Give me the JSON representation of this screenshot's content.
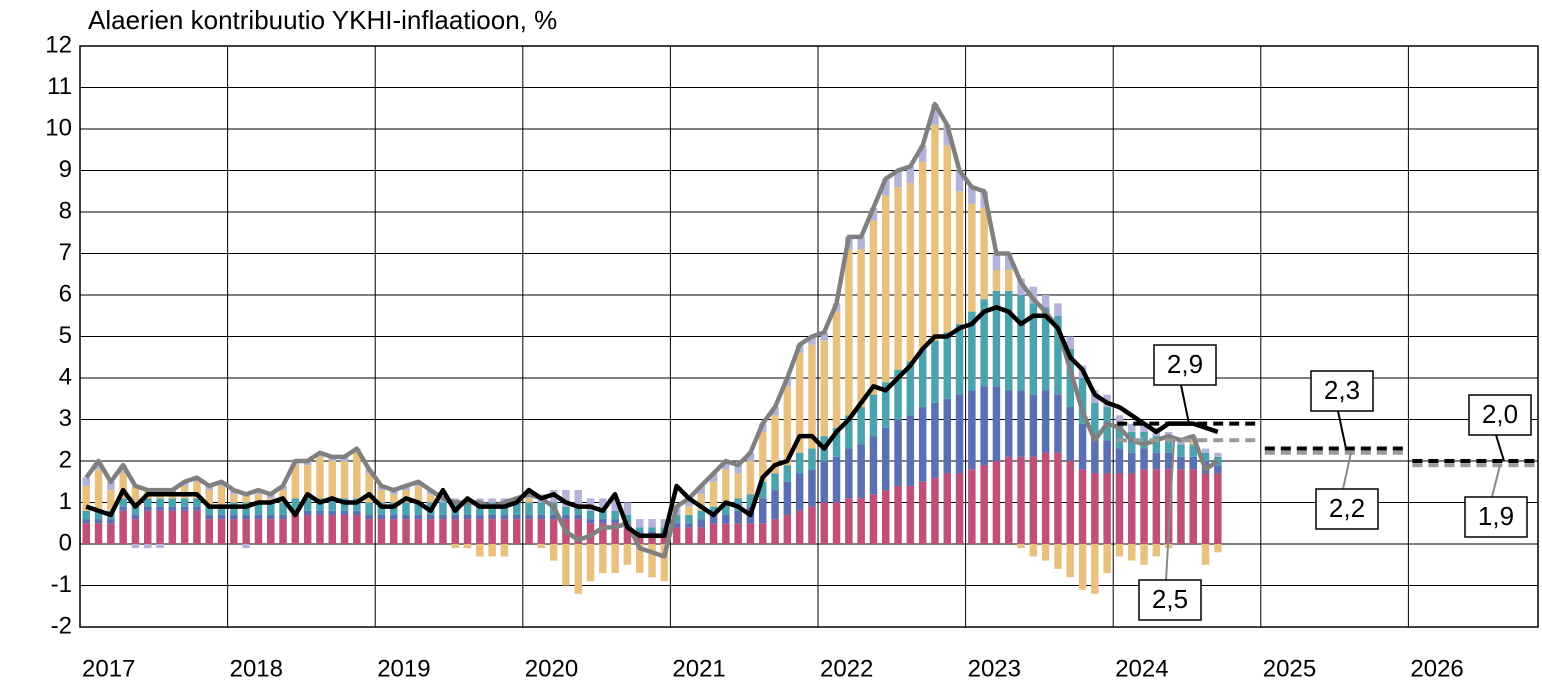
{
  "chart_data": {
    "type": "bar",
    "title": "Alaerien kontribuutio YKHI-inflaatioon, %",
    "categories": [
      "2017",
      null,
      null,
      null,
      null,
      null,
      null,
      null,
      null,
      null,
      null,
      null,
      "2018",
      null,
      null,
      null,
      null,
      null,
      null,
      null,
      null,
      null,
      null,
      null,
      "2019",
      null,
      null,
      null,
      null,
      null,
      null,
      null,
      null,
      null,
      null,
      null,
      "2020",
      null,
      null,
      null,
      null,
      null,
      null,
      null,
      null,
      null,
      null,
      null,
      "2021",
      null,
      null,
      null,
      null,
      null,
      null,
      null,
      null,
      null,
      null,
      null,
      "2022",
      null,
      null,
      null,
      null,
      null,
      null,
      null,
      null,
      null,
      null,
      null,
      "2023",
      null,
      null,
      null,
      null,
      null,
      null,
      null,
      null,
      null,
      null,
      null,
      "2024",
      null,
      null,
      null,
      null,
      null,
      null,
      null,
      null,
      null,
      null,
      null,
      "2025",
      null,
      null,
      null,
      null,
      null,
      null,
      null,
      null,
      null,
      null,
      null,
      "2026",
      null,
      null,
      null,
      null,
      null,
      null,
      null,
      null,
      null,
      null,
      null
    ],
    "ylim": [
      -2,
      12
    ],
    "yticks": [
      -2,
      -1,
      0,
      1,
      2,
      3,
      4,
      5,
      6,
      7,
      8,
      9,
      10,
      11,
      12
    ],
    "grid": true,
    "series": [
      {
        "type": "bar",
        "color": "#c0507a",
        "values": [
          0.5,
          0.5,
          0.5,
          0.8,
          0.6,
          0.8,
          0.8,
          0.8,
          0.8,
          0.8,
          0.6,
          0.6,
          0.6,
          0.6,
          0.6,
          0.6,
          0.6,
          0.7,
          0.7,
          0.7,
          0.7,
          0.7,
          0.7,
          0.6,
          0.6,
          0.6,
          0.6,
          0.6,
          0.6,
          0.6,
          0.6,
          0.6,
          0.6,
          0.6,
          0.6,
          0.6,
          0.6,
          0.6,
          0.6,
          0.6,
          0.6,
          0.5,
          0.5,
          0.5,
          0.4,
          0.2,
          0.2,
          0.2,
          0.4,
          0.4,
          0.4,
          0.5,
          0.5,
          0.5,
          0.5,
          0.5,
          0.6,
          0.7,
          0.8,
          0.9,
          1.0,
          1.0,
          1.1,
          1.1,
          1.2,
          1.3,
          1.4,
          1.4,
          1.5,
          1.6,
          1.7,
          1.7,
          1.8,
          1.9,
          2.0,
          2.1,
          2.1,
          2.1,
          2.2,
          2.2,
          2.0,
          1.8,
          1.7,
          1.7,
          1.7,
          1.7,
          1.8,
          1.8,
          1.8,
          1.8,
          1.8,
          1.7,
          1.7,
          null,
          null,
          null,
          null,
          null,
          null,
          null,
          null,
          null,
          null,
          null,
          null,
          null,
          null,
          null,
          null,
          null,
          null,
          null,
          null,
          null,
          null,
          null,
          null,
          null,
          null,
          null
        ]
      },
      {
        "type": "bar",
        "color": "#5b6fb3",
        "values": [
          0.1,
          0.1,
          0.1,
          0.1,
          0.1,
          0.1,
          0.1,
          0.1,
          0.1,
          0.1,
          0.1,
          0.1,
          0.1,
          0.1,
          0.1,
          0.1,
          0.1,
          0.1,
          0.1,
          0.1,
          0.1,
          0.1,
          0.1,
          0.1,
          0.1,
          0.1,
          0.1,
          0.1,
          0.1,
          0.1,
          0.1,
          0.1,
          0.1,
          0.1,
          0.1,
          0.1,
          0.1,
          0.1,
          0.1,
          0.1,
          0.1,
          0.1,
          0.1,
          0.1,
          0.1,
          0.1,
          0.1,
          0.1,
          0.1,
          0.1,
          0.2,
          0.2,
          0.2,
          0.3,
          0.4,
          0.6,
          0.7,
          0.8,
          0.9,
          0.9,
          1.0,
          1.1,
          1.2,
          1.3,
          1.4,
          1.5,
          1.6,
          1.7,
          1.8,
          1.8,
          1.8,
          1.9,
          1.9,
          1.9,
          1.8,
          1.6,
          1.6,
          1.5,
          1.5,
          1.4,
          1.3,
          1.1,
          0.9,
          0.8,
          0.6,
          0.5,
          0.5,
          0.4,
          0.4,
          0.3,
          0.3,
          0.3,
          0.2,
          null,
          null,
          null,
          null,
          null,
          null,
          null,
          null,
          null,
          null,
          null,
          null,
          null,
          null,
          null,
          null,
          null,
          null,
          null,
          null,
          null,
          null,
          null,
          null,
          null,
          null,
          null
        ]
      },
      {
        "type": "bar",
        "color": "#4aa3ad",
        "values": [
          0.2,
          0.2,
          0.2,
          0.2,
          0.2,
          0.2,
          0.2,
          0.2,
          0.2,
          0.2,
          0.2,
          0.2,
          0.3,
          0.3,
          0.3,
          0.3,
          0.3,
          0.3,
          0.3,
          0.3,
          0.3,
          0.3,
          0.3,
          0.3,
          0.3,
          0.3,
          0.3,
          0.3,
          0.3,
          0.3,
          0.3,
          0.3,
          0.3,
          0.3,
          0.3,
          0.3,
          0.3,
          0.3,
          0.3,
          0.2,
          0.2,
          0.2,
          0.2,
          0.2,
          0.2,
          0.1,
          0.1,
          0.1,
          0.2,
          0.2,
          0.2,
          0.2,
          0.3,
          0.3,
          0.3,
          0.4,
          0.4,
          0.4,
          0.5,
          0.5,
          0.6,
          0.7,
          0.8,
          0.9,
          1.0,
          1.1,
          1.2,
          1.3,
          1.4,
          1.5,
          1.6,
          1.7,
          1.9,
          2.1,
          2.3,
          2.4,
          2.3,
          2.2,
          2.0,
          1.9,
          1.4,
          1.1,
          0.8,
          0.8,
          0.6,
          0.5,
          0.4,
          0.4,
          0.3,
          0.3,
          0.3,
          0.2,
          0.2,
          null,
          null,
          null,
          null,
          null,
          null,
          null,
          null,
          null,
          null,
          null,
          null,
          null,
          null,
          null,
          null,
          null,
          null,
          null,
          null,
          null,
          null,
          null,
          null,
          null,
          null,
          null
        ]
      },
      {
        "type": "bar",
        "color": "#e9c17e",
        "values": [
          0.6,
          1.0,
          0.5,
          0.6,
          0.5,
          0.2,
          0.2,
          0.1,
          0.3,
          0.4,
          0.4,
          0.5,
          0.2,
          0.2,
          0.2,
          0.1,
          0.3,
          0.8,
          0.8,
          1.0,
          0.9,
          0.9,
          1.1,
          0.7,
          0.3,
          0.2,
          0.3,
          0.4,
          0.2,
          0.0,
          -0.1,
          -0.1,
          -0.3,
          -0.3,
          -0.3,
          0.0,
          0.1,
          -0.1,
          -0.4,
          -1.0,
          -1.2,
          -0.9,
          -0.7,
          -0.7,
          -0.5,
          -0.7,
          -0.8,
          -0.9,
          0.0,
          0.2,
          0.4,
          0.6,
          0.8,
          0.6,
          0.8,
          1.2,
          1.4,
          1.9,
          2.4,
          2.5,
          2.3,
          2.8,
          4.0,
          3.8,
          4.2,
          4.5,
          4.4,
          4.3,
          4.5,
          5.2,
          4.5,
          3.2,
          2.6,
          2.2,
          0.5,
          0.5,
          -0.1,
          -0.3,
          -0.4,
          -0.6,
          -0.8,
          -1.1,
          -1.2,
          -0.7,
          -0.3,
          -0.4,
          -0.5,
          -0.3,
          -0.1,
          0.0,
          0.1,
          -0.5,
          -0.2,
          null,
          null,
          null,
          null,
          null,
          null,
          null,
          null,
          null,
          null,
          null,
          null,
          null,
          null,
          null,
          null,
          null,
          null,
          null,
          null,
          null,
          null,
          null,
          null,
          null,
          null,
          null
        ]
      },
      {
        "type": "bar",
        "color": "#b3b3d9",
        "values": [
          0.2,
          0.2,
          0.2,
          0.2,
          -0.1,
          -0.1,
          -0.1,
          0.1,
          0.1,
          0.1,
          0.1,
          0.1,
          0.1,
          -0.1,
          0.1,
          0.1,
          0.1,
          0.1,
          0.1,
          0.1,
          0.1,
          0.1,
          0.1,
          0.1,
          0.1,
          0.1,
          0.1,
          0.1,
          0.1,
          0.1,
          0.1,
          0.1,
          0.1,
          0.1,
          0.1,
          0.1,
          0.1,
          0.2,
          0.3,
          0.4,
          0.4,
          0.3,
          0.3,
          0.3,
          0.3,
          0.2,
          0.2,
          0.2,
          0.2,
          0.2,
          0.2,
          0.2,
          0.2,
          0.2,
          0.2,
          0.2,
          0.2,
          0.2,
          0.2,
          0.2,
          0.2,
          0.2,
          0.3,
          0.3,
          0.3,
          0.4,
          0.4,
          0.4,
          0.4,
          0.5,
          0.5,
          0.5,
          0.4,
          0.4,
          0.4,
          0.4,
          0.4,
          0.4,
          0.3,
          0.3,
          0.3,
          0.3,
          0.3,
          0.3,
          0.2,
          0.2,
          0.2,
          0.2,
          0.2,
          0.1,
          0.1,
          0.1,
          0.1,
          null,
          null,
          null,
          null,
          null,
          null,
          null,
          null,
          null,
          null,
          null,
          null,
          null,
          null,
          null,
          null,
          null,
          null,
          null,
          null,
          null,
          null,
          null,
          null,
          null,
          null,
          null
        ]
      },
      {
        "type": "line",
        "color": "#808080",
        "values": [
          1.6,
          2.0,
          1.5,
          1.9,
          1.4,
          1.3,
          1.3,
          1.3,
          1.5,
          1.6,
          1.4,
          1.5,
          1.3,
          1.2,
          1.3,
          1.2,
          1.4,
          2.0,
          2.0,
          2.2,
          2.1,
          2.1,
          2.3,
          1.8,
          1.4,
          1.3,
          1.4,
          1.5,
          1.3,
          1.1,
          1.0,
          1.0,
          1.0,
          0.9,
          1.0,
          1.1,
          1.2,
          1.1,
          0.9,
          0.3,
          0.1,
          0.2,
          0.4,
          0.4,
          0.5,
          -0.1,
          -0.2,
          -0.3,
          0.9,
          1.1,
          1.4,
          1.7,
          2.0,
          1.9,
          2.2,
          2.9,
          3.3,
          4.0,
          4.8,
          5.0,
          5.1,
          5.8,
          7.4,
          7.4,
          8.1,
          8.8,
          9.0,
          9.1,
          9.6,
          10.6,
          10.1,
          9.0,
          8.6,
          8.5,
          7.0,
          7.0,
          6.3,
          5.9,
          5.6,
          5.2,
          4.2,
          3.2,
          2.5,
          2.9,
          2.8,
          2.5,
          2.4,
          2.5,
          2.6,
          2.5,
          2.6,
          1.8,
          2.0,
          null,
          null,
          null,
          null,
          null,
          null,
          null,
          null,
          null,
          null,
          null,
          null,
          null,
          null,
          null,
          null,
          null,
          null,
          null,
          null,
          null,
          null,
          null,
          null,
          null,
          null,
          null
        ]
      },
      {
        "type": "line",
        "color": "#000000",
        "values": [
          0.9,
          0.8,
          0.7,
          1.3,
          0.9,
          1.2,
          1.2,
          1.2,
          1.2,
          1.2,
          0.9,
          0.9,
          0.9,
          0.9,
          1.0,
          1.0,
          1.1,
          0.7,
          1.2,
          1.0,
          1.1,
          1.0,
          1.0,
          1.2,
          0.9,
          0.9,
          1.1,
          1.0,
          0.8,
          1.3,
          0.8,
          1.1,
          0.9,
          0.9,
          0.9,
          1.0,
          1.3,
          1.1,
          1.2,
          1.0,
          0.9,
          0.9,
          0.8,
          1.2,
          0.4,
          0.2,
          0.2,
          0.2,
          1.4,
          1.1,
          0.9,
          0.7,
          1.0,
          0.9,
          0.7,
          1.6,
          1.9,
          2.0,
          2.6,
          2.6,
          2.3,
          2.7,
          3.0,
          3.4,
          3.8,
          3.7,
          4.0,
          4.3,
          4.7,
          5.0,
          5.0,
          5.2,
          5.3,
          5.6,
          5.7,
          5.6,
          5.3,
          5.5,
          5.5,
          5.2,
          4.5,
          4.2,
          3.6,
          3.4,
          3.3,
          3.1,
          2.9,
          2.7,
          2.9,
          2.9,
          2.9,
          2.8,
          2.7,
          null,
          null,
          null,
          null,
          null,
          null,
          null,
          null,
          null,
          null,
          null,
          null,
          null,
          null,
          null,
          null,
          null,
          null,
          null,
          null,
          null,
          null,
          null,
          null,
          null,
          null,
          null
        ]
      }
    ],
    "forecasts": [
      {
        "color": "#000000",
        "periods": [
          "2024",
          "2025",
          "2026"
        ],
        "values": [
          2.9,
          2.3,
          2.0
        ],
        "value_labels": [
          "2,9",
          "2,3",
          "2,0"
        ]
      },
      {
        "color": "#999999",
        "periods": [
          "2024",
          "2025",
          "2026"
        ],
        "values": [
          2.5,
          2.2,
          1.9
        ],
        "value_labels": [
          "2,5",
          "2,2",
          "1,9"
        ]
      }
    ]
  }
}
